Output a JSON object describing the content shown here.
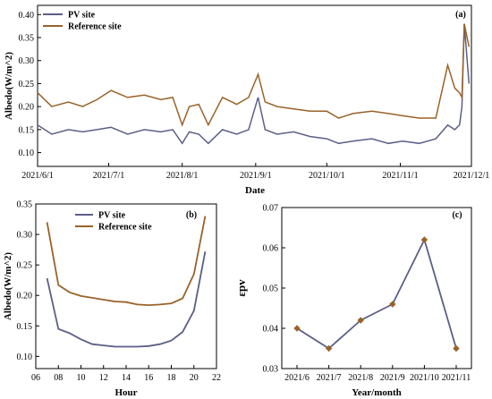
{
  "chart_data": [
    {
      "panel": "(a)",
      "type": "line",
      "xlabel": "Date",
      "ylabel": "Albedo(W/m^2)",
      "ylim": [
        0.07,
        0.42
      ],
      "xlim": [
        "2021/6/1",
        "2021/12/1"
      ],
      "y_ticks": [
        "0.10",
        "0.15",
        "0.20",
        "0.25",
        "0.30",
        "0.35",
        "0.40"
      ],
      "x_ticks": [
        "2021/6/1",
        "2021/7/1",
        "2021/8/1",
        "2021/9/1",
        "2021/10/1",
        "2021/11/1",
        "2021/12/1"
      ],
      "legend_position": "top-left",
      "series": [
        {
          "name": "PV  site",
          "color": "#5b5f86",
          "x": [
            "2021/6/1",
            "2021/6/7",
            "2021/6/14",
            "2021/6/20",
            "2021/6/26",
            "2021/7/2",
            "2021/7/9",
            "2021/7/16",
            "2021/7/23",
            "2021/7/28",
            "2021/8/1",
            "2021/8/4",
            "2021/8/8",
            "2021/8/12",
            "2021/8/18",
            "2021/8/24",
            "2021/8/29",
            "2021/9/2",
            "2021/9/5",
            "2021/9/10",
            "2021/9/17",
            "2021/9/24",
            "2021/10/1",
            "2021/10/6",
            "2021/10/12",
            "2021/10/20",
            "2021/10/27",
            "2021/11/2",
            "2021/11/9",
            "2021/11/16",
            "2021/11/21",
            "2021/11/24",
            "2021/11/26",
            "2021/11/27",
            "2021/11/28",
            "2021/11/30"
          ],
          "values": [
            0.16,
            0.14,
            0.15,
            0.145,
            0.15,
            0.155,
            0.14,
            0.15,
            0.145,
            0.15,
            0.12,
            0.145,
            0.14,
            0.12,
            0.15,
            0.14,
            0.15,
            0.22,
            0.15,
            0.14,
            0.145,
            0.135,
            0.13,
            0.12,
            0.125,
            0.13,
            0.12,
            0.125,
            0.12,
            0.13,
            0.16,
            0.15,
            0.16,
            0.2,
            0.38,
            0.25
          ]
        },
        {
          "name": "Reference  site",
          "color": "#9a6228",
          "x": [
            "2021/6/1",
            "2021/6/7",
            "2021/6/14",
            "2021/6/20",
            "2021/6/26",
            "2021/7/2",
            "2021/7/9",
            "2021/7/16",
            "2021/7/23",
            "2021/7/28",
            "2021/8/1",
            "2021/8/4",
            "2021/8/8",
            "2021/8/12",
            "2021/8/18",
            "2021/8/24",
            "2021/8/29",
            "2021/9/2",
            "2021/9/5",
            "2021/9/10",
            "2021/9/17",
            "2021/9/24",
            "2021/10/1",
            "2021/10/6",
            "2021/10/12",
            "2021/10/20",
            "2021/10/27",
            "2021/11/2",
            "2021/11/9",
            "2021/11/16",
            "2021/11/21",
            "2021/11/24",
            "2021/11/26",
            "2021/11/27",
            "2021/11/28",
            "2021/11/30"
          ],
          "values": [
            0.23,
            0.2,
            0.21,
            0.2,
            0.215,
            0.235,
            0.22,
            0.225,
            0.215,
            0.22,
            0.16,
            0.2,
            0.205,
            0.16,
            0.22,
            0.205,
            0.22,
            0.27,
            0.21,
            0.2,
            0.195,
            0.19,
            0.19,
            0.175,
            0.185,
            0.19,
            0.185,
            0.18,
            0.175,
            0.175,
            0.29,
            0.24,
            0.23,
            0.22,
            0.38,
            0.33
          ]
        }
      ]
    },
    {
      "panel": "(b)",
      "type": "line",
      "xlabel": "Hour",
      "ylabel": "Albedo(W/m^2)",
      "xlim": [
        6,
        22
      ],
      "ylim": [
        0.08,
        0.35
      ],
      "x_ticks": [
        "06",
        "08",
        "10",
        "12",
        "14",
        "16",
        "18",
        "20",
        "22"
      ],
      "y_ticks": [
        "0.10",
        "0.15",
        "0.20",
        "0.25",
        "0.30",
        "0.35"
      ],
      "legend_position": "top-center",
      "series": [
        {
          "name": "PV  site",
          "color": "#5b5f86",
          "x": [
            7,
            8,
            9,
            10,
            11,
            12,
            13,
            14,
            15,
            16,
            17,
            18,
            19,
            20,
            21
          ],
          "values": [
            0.228,
            0.145,
            0.138,
            0.128,
            0.12,
            0.118,
            0.116,
            0.116,
            0.116,
            0.117,
            0.12,
            0.126,
            0.14,
            0.175,
            0.272
          ]
        },
        {
          "name": "Reference  site",
          "color": "#9a6228",
          "x": [
            7,
            8,
            9,
            10,
            11,
            12,
            13,
            14,
            15,
            16,
            17,
            18,
            19,
            20,
            21
          ],
          "values": [
            0.32,
            0.217,
            0.205,
            0.199,
            0.196,
            0.193,
            0.19,
            0.189,
            0.185,
            0.184,
            0.185,
            0.187,
            0.195,
            0.235,
            0.33
          ]
        }
      ]
    },
    {
      "panel": "(c)",
      "type": "line",
      "xlabel": "Year/month",
      "ylabel": "εpv",
      "ylim": [
        0.03,
        0.07
      ],
      "y_ticks": [
        "0.03",
        "0.04",
        "0.05",
        "0.06",
        "0.07"
      ],
      "categories": [
        "2021/6",
        "2021/7",
        "2021/8",
        "2021/9",
        "2021/10",
        "2021/11"
      ],
      "series": [
        {
          "color": "#5b5f86",
          "marker_color": "#9a6228",
          "values": [
            0.04,
            0.035,
            0.042,
            0.046,
            0.062,
            0.035
          ]
        }
      ]
    }
  ]
}
